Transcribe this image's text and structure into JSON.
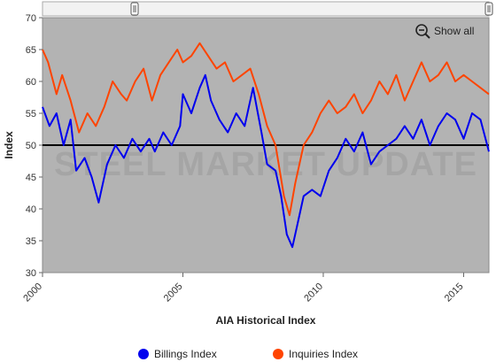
{
  "chart_data": {
    "type": "line",
    "title": "",
    "xlabel": "AIA Historical Index",
    "ylabel": "Index",
    "xlim": [
      2000,
      2015.9
    ],
    "ylim": [
      30,
      70
    ],
    "x_ticks": [
      2000,
      2005,
      2010,
      2015
    ],
    "y_ticks": [
      30,
      35,
      40,
      45,
      50,
      55,
      60,
      65,
      70
    ],
    "reference_line": 50,
    "grid": false,
    "legend_position": "bottom",
    "watermark": "STEEL MARKET UPDATE",
    "show_all_label": "Show all",
    "series": [
      {
        "name": "Billings Index",
        "color": "#0000ee",
        "points": [
          [
            2000.0,
            56
          ],
          [
            2000.25,
            53
          ],
          [
            2000.5,
            55
          ],
          [
            2000.75,
            50
          ],
          [
            2001.0,
            54
          ],
          [
            2001.2,
            46
          ],
          [
            2001.5,
            48
          ],
          [
            2001.75,
            45
          ],
          [
            2002.0,
            41
          ],
          [
            2002.3,
            47
          ],
          [
            2002.6,
            50
          ],
          [
            2002.9,
            48
          ],
          [
            2003.2,
            51
          ],
          [
            2003.5,
            49
          ],
          [
            2003.8,
            51
          ],
          [
            2004.0,
            49
          ],
          [
            2004.3,
            52
          ],
          [
            2004.6,
            50
          ],
          [
            2004.9,
            53
          ],
          [
            2005.0,
            58
          ],
          [
            2005.3,
            55
          ],
          [
            2005.6,
            59
          ],
          [
            2005.8,
            61
          ],
          [
            2006.0,
            57
          ],
          [
            2006.3,
            54
          ],
          [
            2006.6,
            52
          ],
          [
            2006.9,
            55
          ],
          [
            2007.2,
            53
          ],
          [
            2007.5,
            59
          ],
          [
            2007.8,
            52
          ],
          [
            2008.0,
            47
          ],
          [
            2008.3,
            46
          ],
          [
            2008.5,
            42
          ],
          [
            2008.7,
            36
          ],
          [
            2008.9,
            34
          ],
          [
            2009.1,
            38
          ],
          [
            2009.3,
            42
          ],
          [
            2009.6,
            43
          ],
          [
            2009.9,
            42
          ],
          [
            2010.2,
            46
          ],
          [
            2010.5,
            48
          ],
          [
            2010.8,
            51
          ],
          [
            2011.1,
            49
          ],
          [
            2011.4,
            52
          ],
          [
            2011.7,
            47
          ],
          [
            2012.0,
            49
          ],
          [
            2012.3,
            50
          ],
          [
            2012.6,
            51
          ],
          [
            2012.9,
            53
          ],
          [
            2013.2,
            51
          ],
          [
            2013.5,
            54
          ],
          [
            2013.8,
            50
          ],
          [
            2014.1,
            53
          ],
          [
            2014.4,
            55
          ],
          [
            2014.7,
            54
          ],
          [
            2015.0,
            51
          ],
          [
            2015.3,
            55
          ],
          [
            2015.6,
            54
          ],
          [
            2015.9,
            49
          ]
        ]
      },
      {
        "name": "Inquiries Index",
        "color": "#ff4400",
        "points": [
          [
            2000.0,
            65
          ],
          [
            2000.2,
            63
          ],
          [
            2000.5,
            58
          ],
          [
            2000.7,
            61
          ],
          [
            2001.0,
            57
          ],
          [
            2001.3,
            52
          ],
          [
            2001.6,
            55
          ],
          [
            2001.9,
            53
          ],
          [
            2002.2,
            56
          ],
          [
            2002.5,
            60
          ],
          [
            2002.8,
            58
          ],
          [
            2003.0,
            57
          ],
          [
            2003.3,
            60
          ],
          [
            2003.6,
            62
          ],
          [
            2003.9,
            57
          ],
          [
            2004.2,
            61
          ],
          [
            2004.5,
            63
          ],
          [
            2004.8,
            65
          ],
          [
            2005.0,
            63
          ],
          [
            2005.3,
            64
          ],
          [
            2005.6,
            66
          ],
          [
            2005.9,
            64
          ],
          [
            2006.2,
            62
          ],
          [
            2006.5,
            63
          ],
          [
            2006.8,
            60
          ],
          [
            2007.1,
            61
          ],
          [
            2007.4,
            62
          ],
          [
            2007.7,
            58
          ],
          [
            2008.0,
            53
          ],
          [
            2008.3,
            50
          ],
          [
            2008.6,
            42
          ],
          [
            2008.8,
            39
          ],
          [
            2009.0,
            44
          ],
          [
            2009.3,
            50
          ],
          [
            2009.6,
            52
          ],
          [
            2009.9,
            55
          ],
          [
            2010.2,
            57
          ],
          [
            2010.5,
            55
          ],
          [
            2010.8,
            56
          ],
          [
            2011.1,
            58
          ],
          [
            2011.4,
            55
          ],
          [
            2011.7,
            57
          ],
          [
            2012.0,
            60
          ],
          [
            2012.3,
            58
          ],
          [
            2012.6,
            61
          ],
          [
            2012.9,
            57
          ],
          [
            2013.2,
            60
          ],
          [
            2013.5,
            63
          ],
          [
            2013.8,
            60
          ],
          [
            2014.1,
            61
          ],
          [
            2014.4,
            63
          ],
          [
            2014.7,
            60
          ],
          [
            2015.0,
            61
          ],
          [
            2015.3,
            60
          ],
          [
            2015.6,
            59
          ],
          [
            2015.9,
            58
          ]
        ]
      }
    ]
  }
}
